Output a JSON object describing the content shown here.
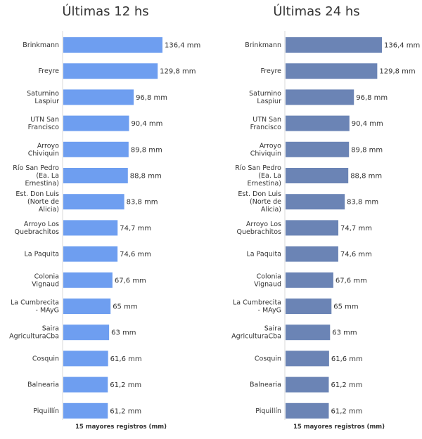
{
  "chart_data": [
    {
      "type": "bar",
      "orientation": "horizontal",
      "title": "Últimas 12 hs",
      "xlabel": "15 mayores registros (mm)",
      "unit": "mm",
      "color": "#6e9ef0",
      "categories": [
        "Brinkmann",
        "Freyre",
        "Saturnino Laspiur",
        "UTN San Francisco",
        "Arroyo Chiviquin",
        "Río San Pedro (Ea. La Ernestina)",
        "Est. Don Luis (Norte de Alicia)",
        "Arroyo Los Quebrachitos",
        "La Paquita",
        "Colonia Vignaud",
        "La Cumbrecita - MAyG",
        "Saira AgriculturaCba",
        "Cosquin",
        "Balnearia",
        "Piquillín"
      ],
      "category_lines": [
        [
          "Brinkmann"
        ],
        [
          "Freyre"
        ],
        [
          "Saturnino",
          "Laspiur"
        ],
        [
          "UTN San",
          "Francisco"
        ],
        [
          "Arroyo",
          "Chiviquin"
        ],
        [
          "Río San Pedro",
          "(Ea. La",
          "Ernestina)"
        ],
        [
          "Est. Don Luis",
          "(Norte de",
          "Alicia)"
        ],
        [
          "Arroyo Los",
          "Quebrachitos"
        ],
        [
          "La Paquita"
        ],
        [
          "Colonia",
          "Vignaud"
        ],
        [
          "La Cumbrecita",
          "- MAyG"
        ],
        [
          "Saira",
          "AgriculturaCba"
        ],
        [
          "Cosquin"
        ],
        [
          "Balnearia"
        ],
        [
          "Piquillín"
        ]
      ],
      "values": [
        136.4,
        129.8,
        96.8,
        90.4,
        89.8,
        88.8,
        83.8,
        74.7,
        74.6,
        67.6,
        65,
        63,
        61.6,
        61.2,
        61.2
      ],
      "value_labels": [
        "136,4 mm",
        "129,8 mm",
        "96,8 mm",
        "90,4 mm",
        "89,8 mm",
        "88,8 mm",
        "83,8 mm",
        "74,7 mm",
        "74,6 mm",
        "67,6 mm",
        "65 mm",
        "63 mm",
        "61,6 mm",
        "61,2 mm",
        "61,2 mm"
      ],
      "xlim": [
        0,
        136.4
      ]
    },
    {
      "type": "bar",
      "orientation": "horizontal",
      "title": "Últimas 24 hs",
      "xlabel": "15 mayores registros (mm)",
      "unit": "mm",
      "color": "#6b84b5",
      "categories": [
        "Brinkmann",
        "Freyre",
        "Saturnino Laspiur",
        "UTN San Francisco",
        "Arroyo Chiviquin",
        "Río San Pedro (Ea. La Ernestina)",
        "Est. Don Luis (Norte de Alicia)",
        "Arroyo Los Quebrachitos",
        "La Paquita",
        "Colonia Vignaud",
        "La Cumbrecita - MAyG",
        "Saira AgriculturaCba",
        "Cosquin",
        "Balnearia",
        "Piquillín"
      ],
      "category_lines": [
        [
          "Brinkmann"
        ],
        [
          "Freyre"
        ],
        [
          "Saturnino",
          "Laspiur"
        ],
        [
          "UTN San",
          "Francisco"
        ],
        [
          "Arroyo",
          "Chiviquin"
        ],
        [
          "Río San Pedro",
          "(Ea. La",
          "Ernestina)"
        ],
        [
          "Est. Don Luis",
          "(Norte de",
          "Alicia)"
        ],
        [
          "Arroyo Los",
          "Quebrachitos"
        ],
        [
          "La Paquita"
        ],
        [
          "Colonia",
          "Vignaud"
        ],
        [
          "La Cumbrecita",
          "- MAyG"
        ],
        [
          "Saira",
          "AgriculturaCba"
        ],
        [
          "Cosquin"
        ],
        [
          "Balnearia"
        ],
        [
          "Piquillín"
        ]
      ],
      "values": [
        136.4,
        129.8,
        96.8,
        90.4,
        89.8,
        88.8,
        83.8,
        74.7,
        74.6,
        67.6,
        65,
        63,
        61.6,
        61.2,
        61.2
      ],
      "value_labels": [
        "136,4 mm",
        "129,8 mm",
        "96,8 mm",
        "90,4 mm",
        "89,8 mm",
        "88,8 mm",
        "83,8 mm",
        "74,7 mm",
        "74,6 mm",
        "67,6 mm",
        "65 mm",
        "63 mm",
        "61,6 mm",
        "61,2 mm",
        "61,2 mm"
      ],
      "xlim": [
        0,
        136.4
      ]
    }
  ]
}
